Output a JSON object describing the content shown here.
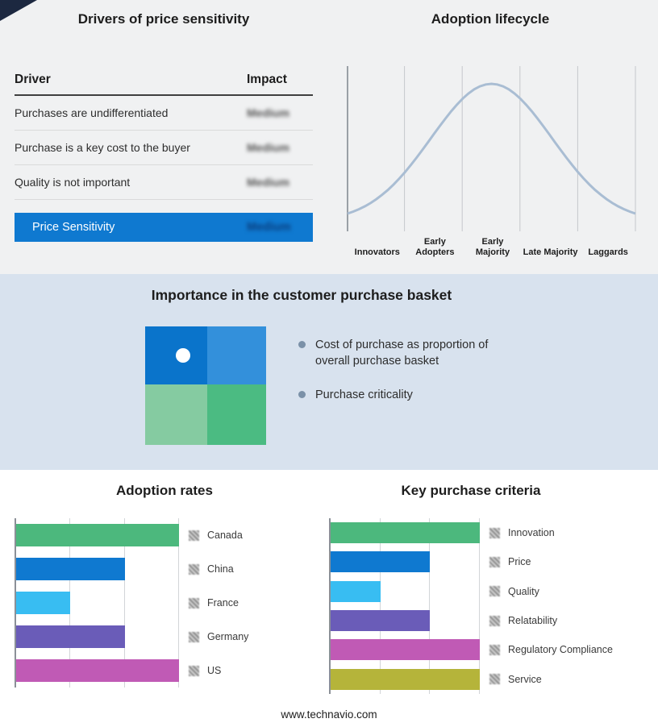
{
  "page": {
    "background_top": "#f0f1f2",
    "background_middle": "#d8e2ee",
    "background_bottom": "#ffffff",
    "corner_accent_color": "#1c2840"
  },
  "icons": {
    "legend_swatch": "hatched-square",
    "bullet": "filled-circle",
    "quadrant_marker": "white-dot"
  },
  "drivers_panel": {
    "title": "Drivers of price sensitivity",
    "columns": {
      "driver": "Driver",
      "impact": "Impact"
    },
    "rows": [
      {
        "driver": "Purchases are undifferentiated",
        "impact": "Medium"
      },
      {
        "driver": "Purchase is a key cost to the buyer",
        "impact": "Medium"
      },
      {
        "driver": "Quality is not important",
        "impact": "Medium"
      }
    ],
    "highlight_row": {
      "driver": "Price Sensitivity",
      "impact": "Medium",
      "color": "#0f79d0"
    }
  },
  "basket_panel": {
    "title": "Importance in the customer purchase basket",
    "bullets": [
      "Cost of purchase as proportion of overall purchase basket",
      "Purchase criticality"
    ],
    "quadrant_colors": [
      "#0a74cb",
      "#3390db",
      "#85cba1",
      "#4bbb82"
    ]
  },
  "footer": {
    "url": "www.technavio.com"
  },
  "chart_data": [
    {
      "type": "line",
      "title": "Adoption lifecycle",
      "subtype": "bell-curve",
      "categories": [
        "Innovators",
        "Early Adopters",
        "Early Majority",
        "Late Majority",
        "Laggards"
      ],
      "peak_category": "Early Majority",
      "sigma": 0.21,
      "line_color": "#a9bdd3",
      "grid": true,
      "legend_position": "none"
    },
    {
      "type": "bar",
      "title": "Adoption rates",
      "orientation": "horizontal",
      "categories": [
        "Canada",
        "China",
        "France",
        "Germany",
        "US"
      ],
      "values": [
        3,
        2,
        1,
        2,
        3
      ],
      "xlim": [
        0,
        3
      ],
      "colors": [
        "#4cb87d",
        "#0f79d0",
        "#38bdf2",
        "#6a5cb8",
        "#c05ab5"
      ],
      "grid": true,
      "legend_position": "right"
    },
    {
      "type": "bar",
      "title": "Key purchase criteria",
      "orientation": "horizontal",
      "categories": [
        "Innovation",
        "Price",
        "Quality",
        "Relatability",
        "Regulatory Compliance",
        "Service"
      ],
      "values": [
        3,
        2,
        1,
        2,
        3,
        3
      ],
      "xlim": [
        0,
        3
      ],
      "colors": [
        "#4cb87d",
        "#0f79d0",
        "#38bdf2",
        "#6a5cb8",
        "#c05ab5",
        "#b5b43a"
      ],
      "grid": true,
      "legend_position": "right"
    }
  ]
}
